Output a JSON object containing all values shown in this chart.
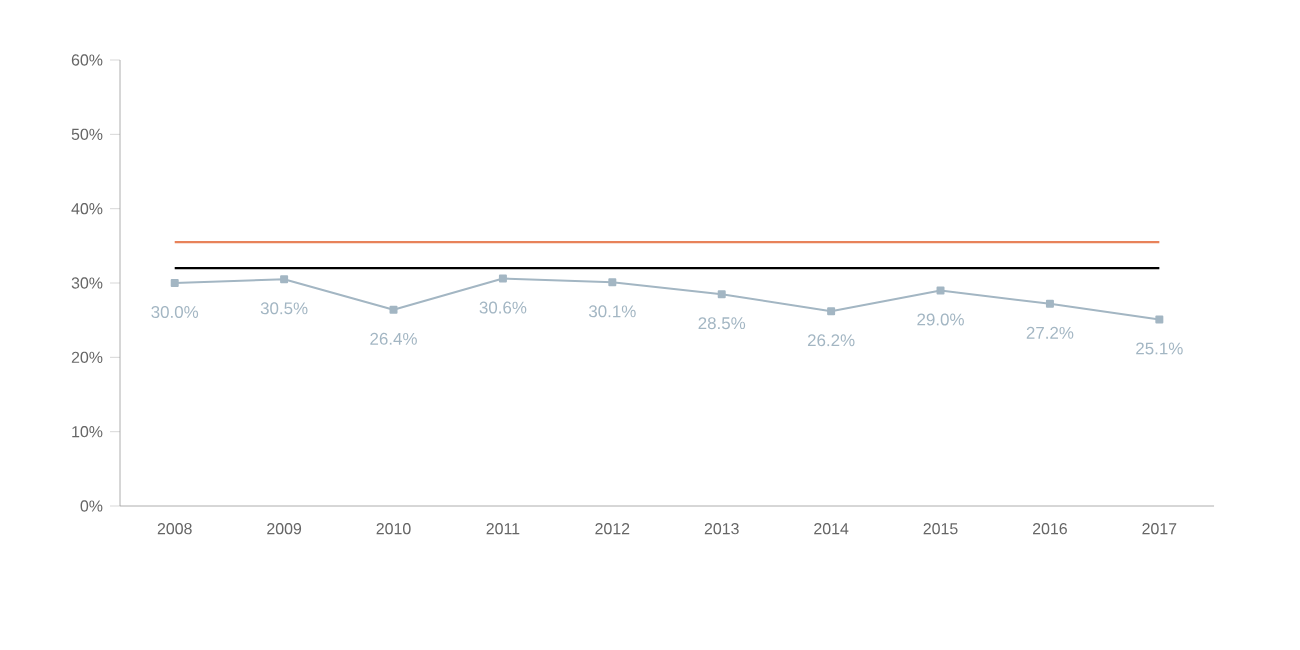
{
  "chart_data": {
    "type": "line",
    "categories": [
      "2008",
      "2009",
      "2010",
      "2011",
      "2012",
      "2013",
      "2014",
      "2015",
      "2016",
      "2017"
    ],
    "series": [
      {
        "color": "#a3b6c3",
        "values": [
          30.0,
          30.5,
          26.4,
          30.6,
          30.1,
          28.5,
          26.2,
          29.0,
          27.2,
          25.1
        ],
        "value_labels": [
          "30.0%",
          "30.5%",
          "26.4%",
          "30.6%",
          "30.1%",
          "28.5%",
          "26.2%",
          "29.0%",
          "27.2%",
          "25.1%"
        ]
      }
    ],
    "marker": "square",
    "ylim": [
      0,
      60
    ],
    "yticks": [
      {
        "value": 0,
        "label": "0%"
      },
      {
        "value": 10,
        "label": "10%"
      },
      {
        "value": 20,
        "label": "20%"
      },
      {
        "value": 30,
        "label": "30%"
      },
      {
        "value": 40,
        "label": "40%"
      },
      {
        "value": 50,
        "label": "50%"
      },
      {
        "value": 60,
        "label": "60%"
      }
    ],
    "ref_lines": [
      {
        "axis": "y",
        "value": 35.5,
        "color": "#e8825a"
      },
      {
        "axis": "y",
        "value": 32.0,
        "color": "#000000"
      }
    ],
    "grid": false
  }
}
